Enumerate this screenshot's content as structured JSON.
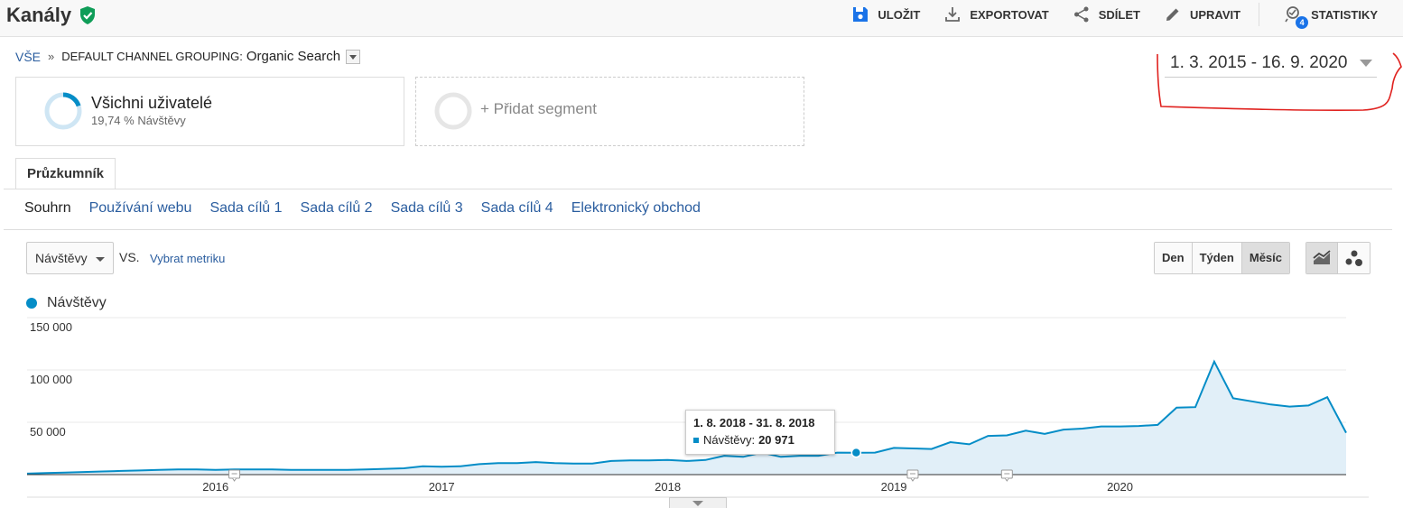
{
  "header": {
    "title": "Kanály",
    "actions": [
      {
        "id": "save",
        "label": "ULOŽIT",
        "icon": "save-icon"
      },
      {
        "id": "export",
        "label": "EXPORTOVAT",
        "icon": "download-icon"
      },
      {
        "id": "share",
        "label": "SDÍLET",
        "icon": "share-icon"
      },
      {
        "id": "edit",
        "label": "UPRAVIT",
        "icon": "pencil-icon"
      },
      {
        "id": "insights",
        "label": "STATISTIKY",
        "icon": "insights-icon",
        "badge": "4"
      }
    ]
  },
  "breadcrumb": {
    "root": "VŠE",
    "separator": "»",
    "label": "DEFAULT CHANNEL GROUPING:",
    "value": "Organic Search"
  },
  "date_range": "1. 3. 2015 - 16. 9. 2020",
  "segments": {
    "primary": {
      "title": "Všichni uživatelé",
      "subtitle": "19,74 % Návštěvy"
    },
    "add_label": "+ Přidat segment"
  },
  "tab": "Průzkumník",
  "subnav": [
    "Souhrn",
    "Používání webu",
    "Sada cílů 1",
    "Sada cílů 2",
    "Sada cílů 3",
    "Sada cílů 4",
    "Elektronický obchod"
  ],
  "controls": {
    "metric": "Návštěvy",
    "vs": "VS.",
    "pick_metric": "Vybrat metriku",
    "periods": [
      "Den",
      "Týden",
      "Měsíc"
    ],
    "active_period": "Měsíc"
  },
  "colors": {
    "series": "#058dc7",
    "fill": "#e1eff8",
    "link": "#2a5d9f",
    "verified": "#0f9d58",
    "annotation": "#e0221f"
  },
  "chart_data": {
    "type": "area",
    "series_name": "Návštěvy",
    "y_ticks": [
      "150 000",
      "100 000",
      "50 000"
    ],
    "ylim": [
      0,
      150000
    ],
    "x_tick_labels": [
      "2016",
      "2017",
      "2018",
      "2019",
      "2020"
    ],
    "x_tick_months": [
      10,
      22,
      34,
      46,
      58
    ],
    "start_month_label": "3/2015",
    "values": [
      1000,
      1500,
      2000,
      2500,
      3000,
      3500,
      4000,
      4500,
      5000,
      5000,
      4500,
      5000,
      5000,
      5000,
      4500,
      4500,
      4500,
      4500,
      5000,
      5500,
      6000,
      8000,
      7500,
      8000,
      10000,
      11000,
      11000,
      12000,
      11000,
      10500,
      10500,
      13000,
      13500,
      13500,
      14000,
      13000,
      14000,
      18000,
      17000,
      21000,
      17000,
      18000,
      18000,
      21000,
      20971,
      21000,
      25500,
      25000,
      24500,
      31000,
      29000,
      37000,
      37500,
      42000,
      39000,
      43000,
      44000,
      46000,
      46000,
      46500,
      47500,
      64000,
      64500,
      108000,
      73000,
      70000,
      67000,
      65000,
      66000,
      74000,
      40000
    ],
    "tooltip": {
      "range": "1. 8. 2018 - 31. 8. 2018",
      "label": "Návštěvy:",
      "value": "20 971",
      "index": 44
    },
    "annotation_markers_month_index": [
      11,
      47,
      52
    ]
  }
}
